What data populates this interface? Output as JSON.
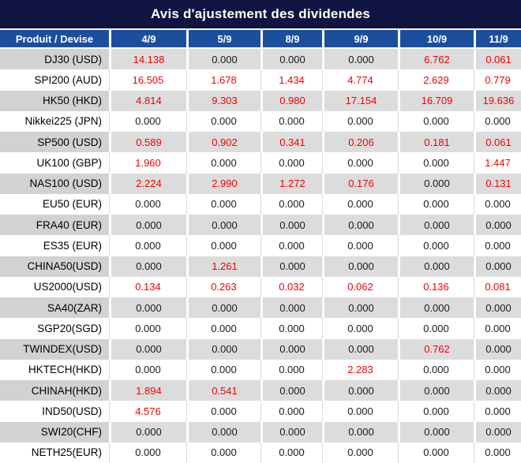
{
  "title": "Avis d'ajustement des dividendes",
  "table": {
    "header": {
      "product_label": "Produit / Devise",
      "dates": [
        "4/9",
        "5/9",
        "8/9",
        "9/9",
        "10/9",
        "11/9"
      ]
    },
    "rows": [
      {
        "product": "DJ30 (USD)",
        "values": [
          "14.138",
          "0.000",
          "0.000",
          "0.000",
          "6.762",
          "0.061"
        ],
        "red": [
          true,
          false,
          false,
          false,
          true,
          true
        ]
      },
      {
        "product": "SPI200 (AUD)",
        "values": [
          "16.505",
          "1.678",
          "1.434",
          "4.774",
          "2.629",
          "0.779"
        ],
        "red": [
          true,
          true,
          true,
          true,
          true,
          true
        ]
      },
      {
        "product": "HK50 (HKD)",
        "values": [
          "4.814",
          "9.303",
          "0.980",
          "17.154",
          "16.709",
          "19.636"
        ],
        "red": [
          true,
          true,
          true,
          true,
          true,
          true
        ]
      },
      {
        "product": "Nikkei225 (JPN)",
        "values": [
          "0.000",
          "0.000",
          "0.000",
          "0.000",
          "0.000",
          "0.000"
        ],
        "red": [
          false,
          false,
          false,
          false,
          false,
          false
        ]
      },
      {
        "product": "SP500 (USD)",
        "values": [
          "0.589",
          "0.902",
          "0.341",
          "0.206",
          "0.181",
          "0.061"
        ],
        "red": [
          true,
          true,
          true,
          true,
          true,
          true
        ]
      },
      {
        "product": "UK100 (GBP)",
        "values": [
          "1.960",
          "0.000",
          "0.000",
          "0.000",
          "0.000",
          "1.447"
        ],
        "red": [
          true,
          false,
          false,
          false,
          false,
          true
        ]
      },
      {
        "product": "NAS100 (USD)",
        "values": [
          "2.224",
          "2.990",
          "1.272",
          "0.176",
          "0.000",
          "0.131"
        ],
        "red": [
          true,
          true,
          true,
          true,
          false,
          true
        ]
      },
      {
        "product": "EU50 (EUR)",
        "values": [
          "0.000",
          "0.000",
          "0.000",
          "0.000",
          "0.000",
          "0.000"
        ],
        "red": [
          false,
          false,
          false,
          false,
          false,
          false
        ]
      },
      {
        "product": "FRA40 (EUR)",
        "values": [
          "0.000",
          "0.000",
          "0.000",
          "0.000",
          "0.000",
          "0.000"
        ],
        "red": [
          false,
          false,
          false,
          false,
          false,
          false
        ]
      },
      {
        "product": "ES35 (EUR)",
        "values": [
          "0.000",
          "0.000",
          "0.000",
          "0.000",
          "0.000",
          "0.000"
        ],
        "red": [
          false,
          false,
          false,
          false,
          false,
          false
        ]
      },
      {
        "product": "CHINA50(USD)",
        "values": [
          "0.000",
          "1.261",
          "0.000",
          "0.000",
          "0.000",
          "0.000"
        ],
        "red": [
          false,
          true,
          false,
          false,
          false,
          false
        ]
      },
      {
        "product": "US2000(USD)",
        "values": [
          "0.134",
          "0.263",
          "0.032",
          "0.062",
          "0.136",
          "0.081"
        ],
        "red": [
          true,
          true,
          true,
          true,
          true,
          true
        ]
      },
      {
        "product": "SA40(ZAR)",
        "values": [
          "0.000",
          "0.000",
          "0.000",
          "0.000",
          "0.000",
          "0.000"
        ],
        "red": [
          false,
          false,
          false,
          false,
          false,
          false
        ]
      },
      {
        "product": "SGP20(SGD)",
        "values": [
          "0.000",
          "0.000",
          "0.000",
          "0.000",
          "0.000",
          "0.000"
        ],
        "red": [
          false,
          false,
          false,
          false,
          false,
          false
        ]
      },
      {
        "product": "TWINDEX(USD)",
        "values": [
          "0.000",
          "0.000",
          "0.000",
          "0.000",
          "0.762",
          "0.000"
        ],
        "red": [
          false,
          false,
          false,
          false,
          true,
          false
        ]
      },
      {
        "product": "HKTECH(HKD)",
        "values": [
          "0.000",
          "0.000",
          "0.000",
          "2.283",
          "0.000",
          "0.000"
        ],
        "red": [
          false,
          false,
          false,
          true,
          false,
          false
        ]
      },
      {
        "product": "CHINAH(HKD)",
        "values": [
          "1.894",
          "0.541",
          "0.000",
          "0.000",
          "0.000",
          "0.000"
        ],
        "red": [
          true,
          true,
          false,
          false,
          false,
          false
        ]
      },
      {
        "product": "IND50(USD)",
        "values": [
          "4.576",
          "0.000",
          "0.000",
          "0.000",
          "0.000",
          "0.000"
        ],
        "red": [
          true,
          false,
          false,
          false,
          false,
          false
        ]
      },
      {
        "product": "SWI20(CHF)",
        "values": [
          "0.000",
          "0.000",
          "0.000",
          "0.000",
          "0.000",
          "0.000"
        ],
        "red": [
          false,
          false,
          false,
          false,
          false,
          false
        ]
      },
      {
        "product": "NETH25(EUR)",
        "values": [
          "0.000",
          "0.000",
          "0.000",
          "0.000",
          "0.000",
          "0.000"
        ],
        "red": [
          false,
          false,
          false,
          false,
          false,
          false
        ]
      }
    ]
  },
  "colors": {
    "title_bg": "#101440",
    "header_bg": "#1b4f9e",
    "row_gray": "#dcdcdc",
    "label_gray": "#d2d2d2",
    "row_white": "#ffffff",
    "grid_line": "#d9d9d9",
    "red_value": "#f40000",
    "dark_value": "#1a1a1a"
  }
}
